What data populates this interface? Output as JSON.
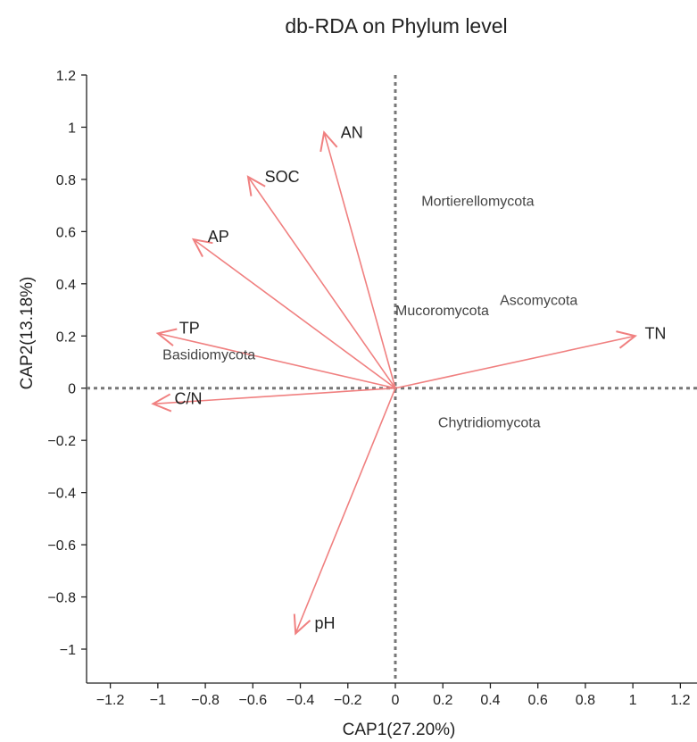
{
  "chart_data": {
    "type": "scatter",
    "title": "db-RDA on Phylum level",
    "xlabel": "CAP1(27.20%)",
    "ylabel": "CAP2(13.18%)",
    "xlim": [
      -1.3,
      1.27
    ],
    "ylim": [
      -1.13,
      1.2
    ],
    "xticks": [
      -1.2,
      -1,
      -0.8,
      -0.6,
      -0.4,
      -0.2,
      0,
      0.2,
      0.4,
      0.6,
      0.8,
      1,
      1.2
    ],
    "xtick_labels": [
      "−1.2",
      "−1",
      "−0.8",
      "−0.6",
      "−0.4",
      "−0.2",
      "0",
      "0.2",
      "0.4",
      "0.6",
      "0.8",
      "1",
      "1.2"
    ],
    "yticks": [
      -1,
      -0.8,
      -0.6,
      -0.4,
      -0.2,
      0,
      0.2,
      0.4,
      0.6,
      0.8,
      1,
      1.2
    ],
    "ytick_labels": [
      "−1",
      "−0.8",
      "−0.6",
      "−0.4",
      "−0.2",
      "0",
      "0.2",
      "0.4",
      "0.6",
      "0.8",
      "1",
      "1.2"
    ],
    "reference_lines": {
      "x": 0,
      "y": 0,
      "style": "dotted"
    },
    "grid": false,
    "arrow_color": "#f08080",
    "vectors": [
      {
        "label": "AN",
        "x": -0.3,
        "y": 0.98,
        "label_x": -0.23,
        "label_y": 0.98
      },
      {
        "label": "SOC",
        "x": -0.62,
        "y": 0.81,
        "label_x": -0.55,
        "label_y": 0.81
      },
      {
        "label": "AP",
        "x": -0.85,
        "y": 0.57,
        "label_x": -0.79,
        "label_y": 0.58
      },
      {
        "label": "TP",
        "x": -1.0,
        "y": 0.21,
        "label_x": -0.91,
        "label_y": 0.23
      },
      {
        "label": "C/N",
        "x": -1.02,
        "y": -0.06,
        "label_x": -0.93,
        "label_y": -0.04
      },
      {
        "label": "TN",
        "x": 1.01,
        "y": 0.2,
        "label_x": 1.05,
        "label_y": 0.21
      },
      {
        "label": "pH",
        "x": -0.42,
        "y": -0.94,
        "label_x": -0.34,
        "label_y": -0.9
      }
    ],
    "points": [
      {
        "label": "Mortierellomycota",
        "x": 0.11,
        "y": 0.72
      },
      {
        "label": "Ascomycota",
        "x": 0.44,
        "y": 0.34
      },
      {
        "label": "Mucoromycota",
        "x": 0.0,
        "y": 0.3
      },
      {
        "label": "Basidiomycota",
        "x": -0.98,
        "y": 0.13
      },
      {
        "label": "Chytridiomycota",
        "x": 0.18,
        "y": -0.13
      }
    ]
  }
}
